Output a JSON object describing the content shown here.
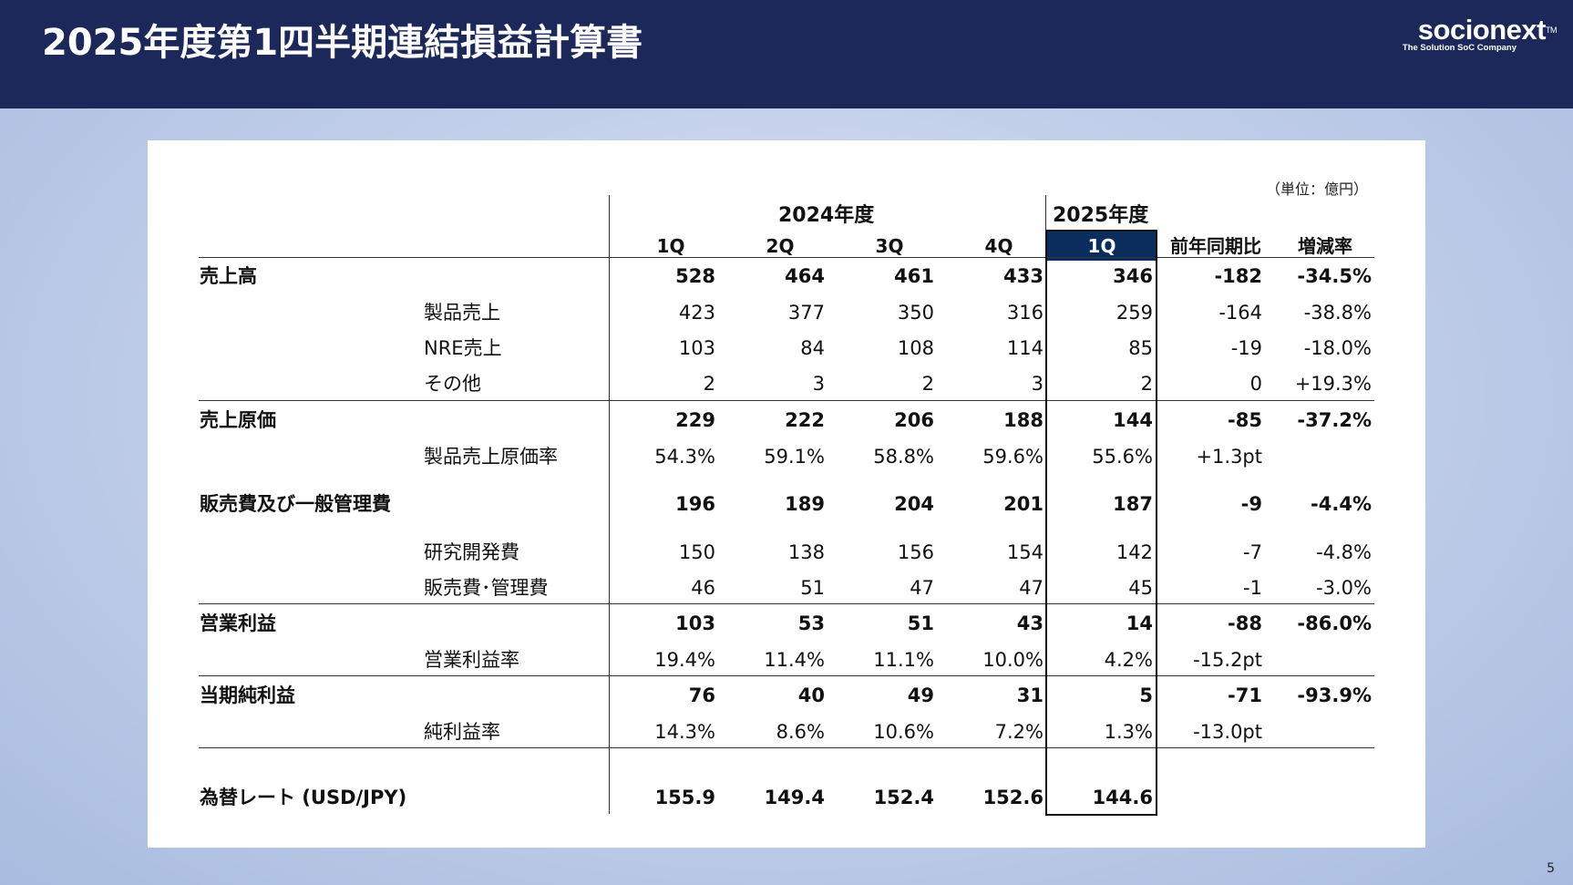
{
  "header": {
    "title": "2025年度第1四半期連結損益計算書",
    "logo_main": "socionext",
    "logo_tm": "TM",
    "logo_sub": "The Solution SoC Company"
  },
  "unit_note": "（単位：億円）",
  "page_number": "5",
  "table": {
    "year_2024": "2024年度",
    "year_2025": "2025年度",
    "columns": [
      "1Q",
      "2Q",
      "3Q",
      "4Q",
      "1Q",
      "前年同期比",
      "増減率"
    ],
    "rows": [
      {
        "label": "売上高",
        "indent": false,
        "bold": true,
        "values": [
          "528",
          "464",
          "461",
          "433",
          "346",
          "-182",
          "-34.5%"
        ]
      },
      {
        "label": "製品売上",
        "indent": true,
        "bold": false,
        "values": [
          "423",
          "377",
          "350",
          "316",
          "259",
          "-164",
          "-38.8%"
        ]
      },
      {
        "label": "NRE売上",
        "indent": true,
        "bold": false,
        "values": [
          "103",
          "84",
          "108",
          "114",
          "85",
          "-19",
          "-18.0%"
        ]
      },
      {
        "label": "その他",
        "indent": true,
        "bold": false,
        "values": [
          "2",
          "3",
          "2",
          "3",
          "2",
          "0",
          "+19.3%"
        ]
      },
      {
        "label": "売上原価",
        "indent": false,
        "bold": true,
        "values": [
          "229",
          "222",
          "206",
          "188",
          "144",
          "-85",
          "-37.2%"
        ]
      },
      {
        "label": "製品売上原価率",
        "indent": true,
        "bold": false,
        "values": [
          "54.3%",
          "59.1%",
          "58.8%",
          "59.6%",
          "55.6%",
          "+1.3pt",
          ""
        ]
      },
      {
        "label": "販売費及び一般管理費",
        "indent": false,
        "bold": true,
        "values": [
          "196",
          "189",
          "204",
          "201",
          "187",
          "-9",
          "-4.4%"
        ]
      },
      {
        "label": "研究開発費",
        "indent": true,
        "bold": false,
        "values": [
          "150",
          "138",
          "156",
          "154",
          "142",
          "-7",
          "-4.8%"
        ]
      },
      {
        "label": "販売費･管理費",
        "indent": true,
        "bold": false,
        "values": [
          "46",
          "51",
          "47",
          "47",
          "45",
          "-1",
          "-3.0%"
        ]
      },
      {
        "label": "営業利益",
        "indent": false,
        "bold": true,
        "values": [
          "103",
          "53",
          "51",
          "43",
          "14",
          "-88",
          "-86.0%"
        ]
      },
      {
        "label": "営業利益率",
        "indent": true,
        "bold": false,
        "values": [
          "19.4%",
          "11.4%",
          "11.1%",
          "10.0%",
          "4.2%",
          "-15.2pt",
          ""
        ]
      },
      {
        "label": "当期純利益",
        "indent": false,
        "bold": true,
        "values": [
          "76",
          "40",
          "49",
          "31",
          "5",
          "-71",
          "-93.9%"
        ]
      },
      {
        "label": "純利益率",
        "indent": true,
        "bold": false,
        "values": [
          "14.3%",
          "8.6%",
          "10.6%",
          "7.2%",
          "1.3%",
          "-13.0pt",
          ""
        ]
      },
      {
        "label": "為替レート (USD/JPY)",
        "indent": false,
        "bold": true,
        "values": [
          "155.9",
          "149.4",
          "152.4",
          "152.6",
          "144.6",
          "",
          ""
        ]
      }
    ]
  }
}
